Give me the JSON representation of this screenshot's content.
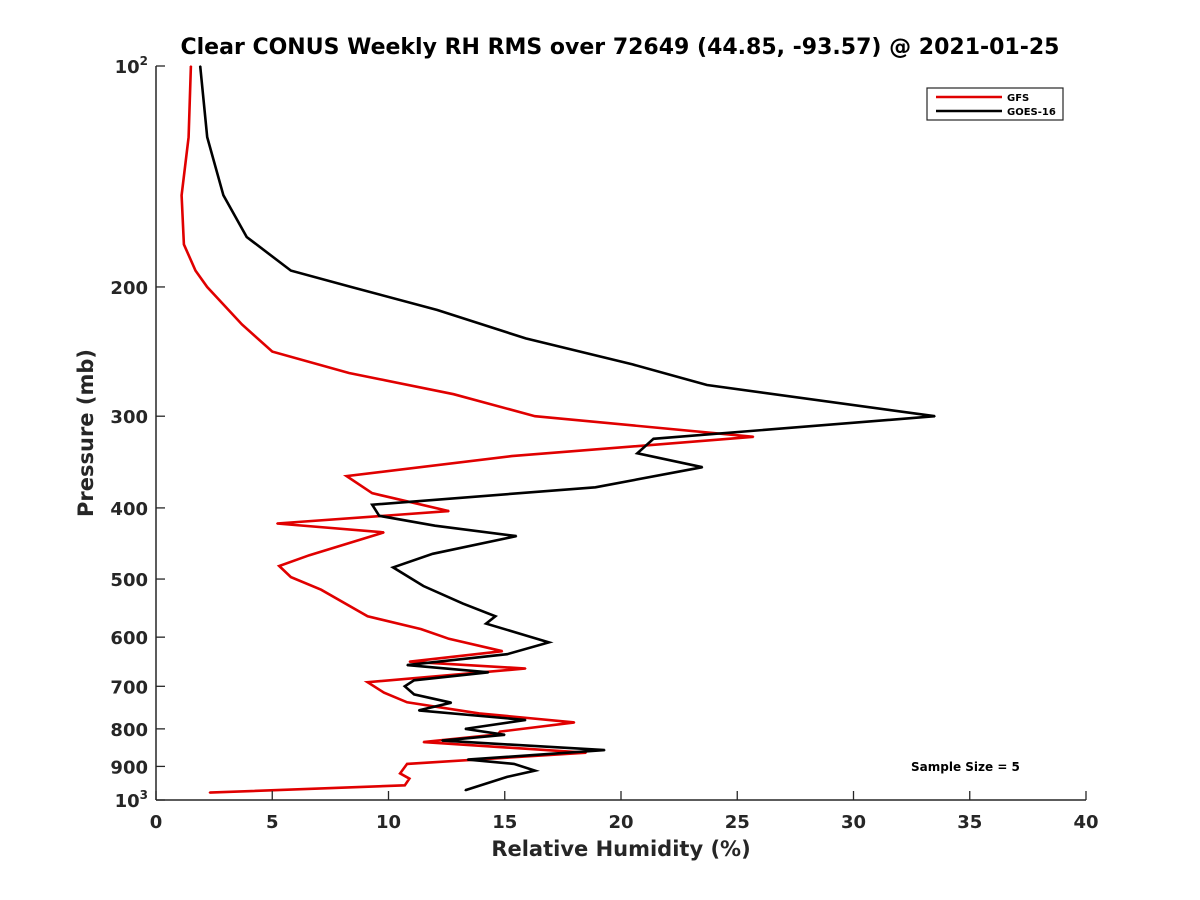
{
  "chart_data": {
    "type": "line",
    "title": "Clear CONUS Weekly RH RMS over 72649 (44.85, -93.57) @ 2021-01-25",
    "xlabel": "Relative Humidity (%)",
    "ylabel": "Pressure (mb)",
    "xlim": [
      0,
      40
    ],
    "ylim": [
      100,
      1000
    ],
    "y_scale": "log",
    "y_reversed": true,
    "grid": false,
    "x_ticks": [
      {
        "value": 0,
        "label": "0"
      },
      {
        "value": 5,
        "label": "5"
      },
      {
        "value": 10,
        "label": "10"
      },
      {
        "value": 15,
        "label": "15"
      },
      {
        "value": 20,
        "label": "20"
      },
      {
        "value": 25,
        "label": "25"
      },
      {
        "value": 30,
        "label": "30"
      },
      {
        "value": 35,
        "label": "35"
      },
      {
        "value": 40,
        "label": "40"
      }
    ],
    "y_ticks": [
      {
        "value": 100,
        "base": "10",
        "sup": "2"
      },
      {
        "value": 200,
        "base": "200",
        "sup": ""
      },
      {
        "value": 300,
        "base": "300",
        "sup": ""
      },
      {
        "value": 400,
        "base": "400",
        "sup": ""
      },
      {
        "value": 500,
        "base": "500",
        "sup": ""
      },
      {
        "value": 600,
        "base": "600",
        "sup": ""
      },
      {
        "value": 700,
        "base": "700",
        "sup": ""
      },
      {
        "value": 800,
        "base": "800",
        "sup": ""
      },
      {
        "value": 900,
        "base": "900",
        "sup": ""
      },
      {
        "value": 1000,
        "base": "10",
        "sup": "3"
      }
    ],
    "legend": {
      "placement": "top-right"
    },
    "annotation": "Sample Size = 5",
    "series": [
      {
        "name": "GFS",
        "color": "#e00000",
        "points": [
          [
            1.5,
            100
          ],
          [
            1.4,
            125
          ],
          [
            1.1,
            150
          ],
          [
            1.2,
            175
          ],
          [
            1.7,
            190
          ],
          [
            2.2,
            200
          ],
          [
            3.7,
            225
          ],
          [
            5.0,
            245
          ],
          [
            8.3,
            262
          ],
          [
            12.8,
            280
          ],
          [
            16.3,
            300
          ],
          [
            25.7,
            320
          ],
          [
            15.3,
            340
          ],
          [
            8.2,
            362
          ],
          [
            9.3,
            382
          ],
          [
            12.6,
            404
          ],
          [
            5.2,
            420
          ],
          [
            9.8,
            432
          ],
          [
            6.6,
            464
          ],
          [
            5.3,
            480
          ],
          [
            5.8,
            497
          ],
          [
            7.1,
            517
          ],
          [
            9.1,
            562
          ],
          [
            11.4,
            585
          ],
          [
            12.6,
            603
          ],
          [
            14.9,
            627
          ],
          [
            10.9,
            648
          ],
          [
            15.9,
            662
          ],
          [
            9.1,
            691
          ],
          [
            9.8,
            714
          ],
          [
            10.8,
            736
          ],
          [
            13.9,
            762
          ],
          [
            18.0,
            784
          ],
          [
            14.8,
            807
          ],
          [
            14.7,
            814
          ],
          [
            11.5,
            834
          ],
          [
            18.5,
            862
          ],
          [
            10.8,
            893
          ],
          [
            10.5,
            920
          ],
          [
            10.9,
            935
          ],
          [
            10.7,
            955
          ],
          [
            2.3,
            977
          ]
        ]
      },
      {
        "name": "GOES-16",
        "color": "#000000",
        "points": [
          [
            1.9,
            100
          ],
          [
            2.2,
            125
          ],
          [
            2.9,
            150
          ],
          [
            3.9,
            171
          ],
          [
            5.8,
            190
          ],
          [
            8.4,
            200
          ],
          [
            12.1,
            215
          ],
          [
            15.9,
            235
          ],
          [
            20.5,
            255
          ],
          [
            23.7,
            272
          ],
          [
            33.5,
            300
          ],
          [
            21.4,
            322
          ],
          [
            20.7,
            337
          ],
          [
            23.5,
            352
          ],
          [
            18.9,
            375
          ],
          [
            9.3,
            396
          ],
          [
            9.6,
            410
          ],
          [
            12.0,
            423
          ],
          [
            15.5,
            437
          ],
          [
            11.9,
            462
          ],
          [
            10.2,
            482
          ],
          [
            11.5,
            511
          ],
          [
            13.2,
            540
          ],
          [
            14.6,
            562
          ],
          [
            14.2,
            575
          ],
          [
            16.9,
            610
          ],
          [
            15.1,
            633
          ],
          [
            10.8,
            655
          ],
          [
            14.3,
            670
          ],
          [
            11.1,
            687
          ],
          [
            10.7,
            700
          ],
          [
            11.1,
            718
          ],
          [
            12.7,
            737
          ],
          [
            11.3,
            755
          ],
          [
            15.9,
            778
          ],
          [
            13.3,
            800
          ],
          [
            15.0,
            815
          ],
          [
            12.3,
            830
          ],
          [
            19.3,
            855
          ],
          [
            13.4,
            881
          ],
          [
            15.4,
            893
          ],
          [
            16.3,
            912
          ],
          [
            15.1,
            930
          ],
          [
            13.3,
            970
          ]
        ]
      }
    ]
  }
}
